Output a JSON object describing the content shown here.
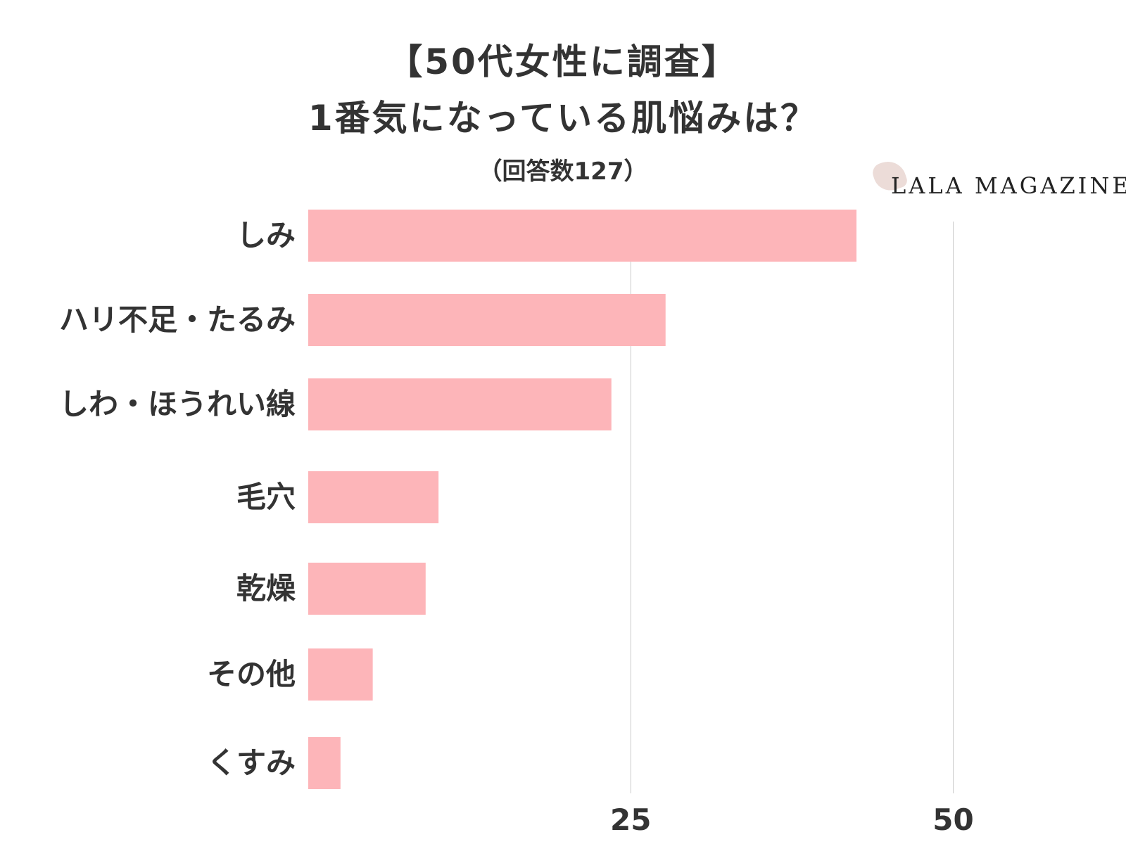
{
  "chart_data": {
    "type": "bar",
    "orientation": "horizontal",
    "title_lines": [
      "【50代女性に調査】",
      "1番気になっている肌悩みは？"
    ],
    "subtitle": "（回答数127）",
    "categories": [
      "しみ",
      "ハリ不足・たるみ",
      "しわ・ほうれい線",
      "毛穴",
      "乾燥",
      "その他",
      "くすみ"
    ],
    "values": [
      42.5,
      27.7,
      23.5,
      10.1,
      9.1,
      5.0,
      2.5
    ],
    "x_ticks": [
      25,
      50
    ],
    "xlim": [
      0,
      50
    ],
    "grid": true,
    "legend": "none",
    "colors": {
      "bar": "#fdb5b9",
      "grid": "#cccccc",
      "text": "#333333"
    }
  },
  "logo": {
    "text": "LALA MAGAZINE",
    "mark_color": "#ecdcd8"
  }
}
